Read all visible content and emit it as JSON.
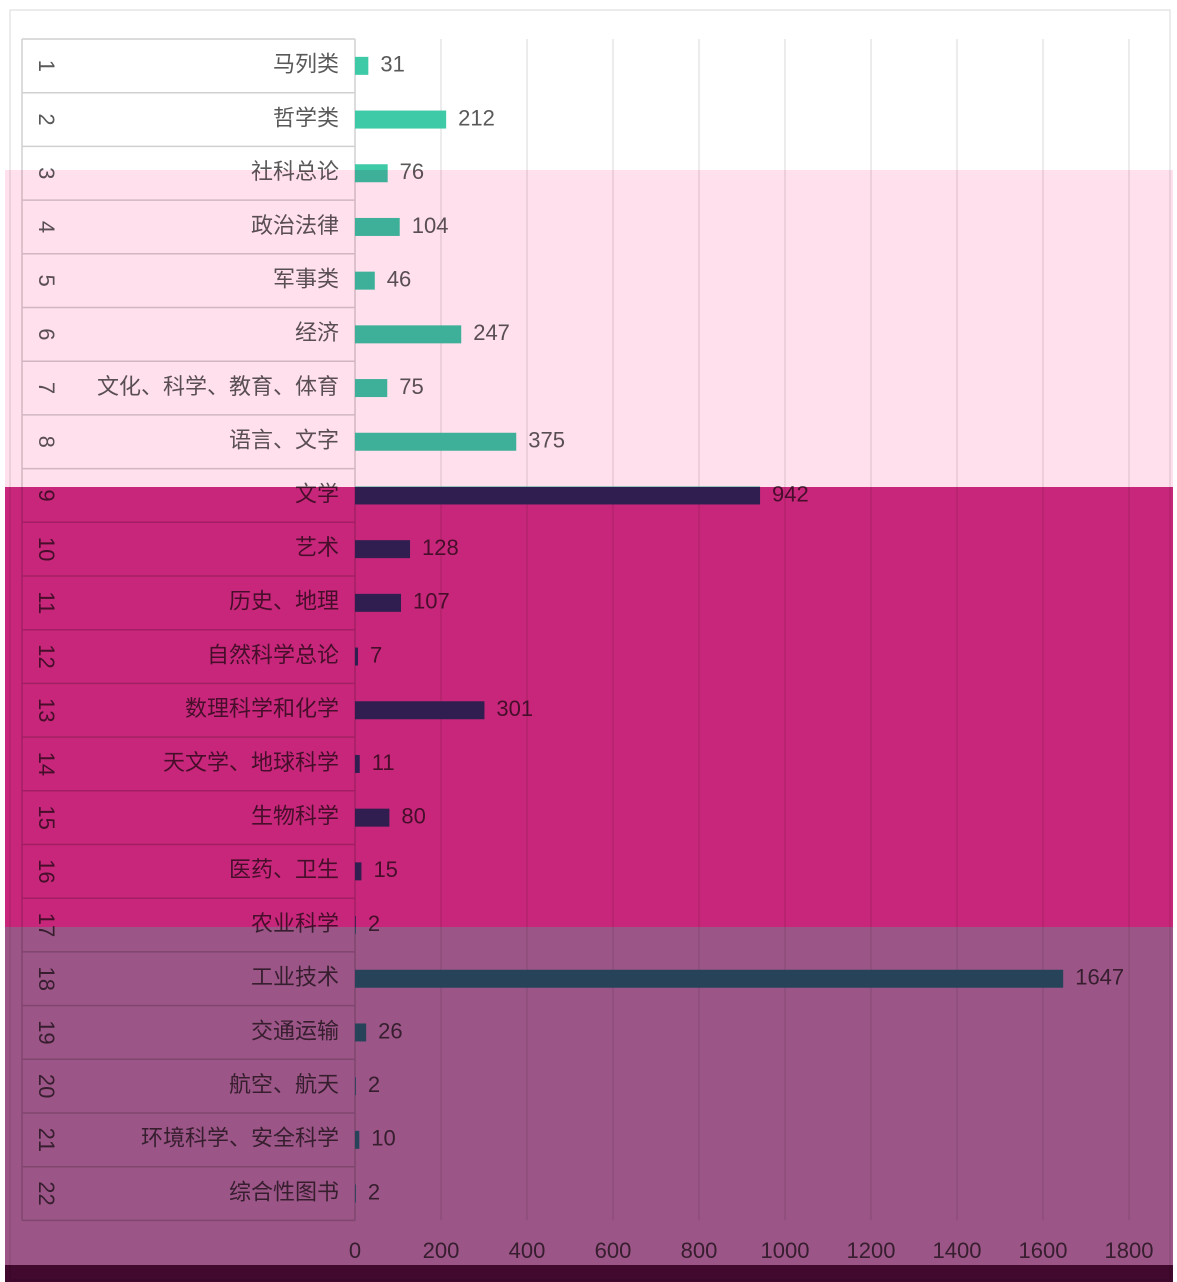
{
  "chart_data": {
    "type": "bar",
    "orientation": "horizontal",
    "row_labels": [
      "1",
      "2",
      "3",
      "4",
      "5",
      "6",
      "7",
      "8",
      "9",
      "10",
      "11",
      "12",
      "13",
      "14",
      "15",
      "16",
      "17",
      "18",
      "19",
      "20",
      "21",
      "22"
    ],
    "categories": [
      "马列类",
      "哲学类",
      "社科总论",
      "政治法律",
      "军事类",
      "经济",
      "文化、科学、教育、体育",
      "语言、文字",
      "文学",
      "艺术",
      "历史、地理",
      "自然科学总论",
      "数理科学和化学",
      "天文学、地球科学",
      "生物科学",
      "医药、卫生",
      "农业科学",
      "工业技术",
      "交通运输",
      "航空、航天",
      "环境科学、安全科学",
      "综合性图书"
    ],
    "values": [
      31,
      212,
      76,
      104,
      46,
      247,
      75,
      375,
      942,
      128,
      107,
      7,
      301,
      11,
      80,
      15,
      2,
      1647,
      26,
      2,
      10,
      2
    ],
    "color": "#3ec9a7",
    "xlim": [
      0,
      1800
    ],
    "xticks": [
      0,
      200,
      400,
      600,
      800,
      1000,
      1200,
      1400,
      1600,
      1800
    ],
    "grid": true
  }
}
